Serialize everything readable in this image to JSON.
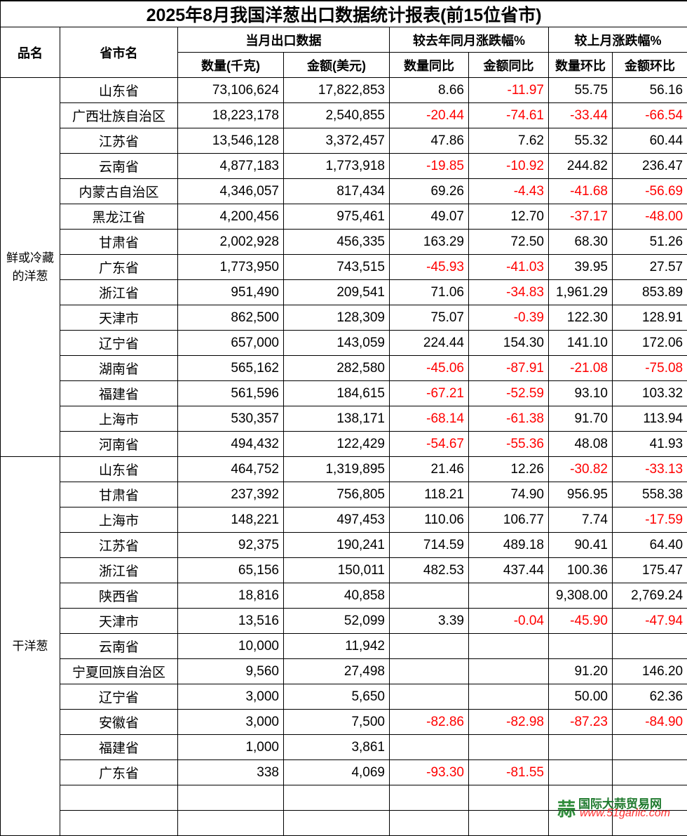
{
  "title": "2025年8月我国洋葱出口数据统计报表(前15位省市)",
  "headers": {
    "product": "品名",
    "province": "省市名",
    "group_current": "当月出口数据",
    "group_yoy": "较去年同月涨跌幅%",
    "group_mom": "较上月涨跌幅%",
    "quantity": "数量(千克)",
    "amount": "金额(美元)",
    "qty_yoy": "数量同比",
    "amt_yoy": "金额同比",
    "qty_mom": "数量环比",
    "amt_mom": "金额环比"
  },
  "colors": {
    "negative": "#ff0000",
    "logo_green": "#1f7a2e",
    "logo_red": "#ff3030"
  },
  "groups": [
    {
      "name": "鲜或冷藏的洋葱",
      "rows": [
        [
          "山东省",
          "73,106,624",
          "17,822,853",
          "8.66",
          "-11.97",
          "55.75",
          "56.16"
        ],
        [
          "广西壮族自治区",
          "18,223,178",
          "2,540,855",
          "-20.44",
          "-74.61",
          "-33.44",
          "-66.54"
        ],
        [
          "江苏省",
          "13,546,128",
          "3,372,457",
          "47.86",
          "7.62",
          "55.32",
          "60.44"
        ],
        [
          "云南省",
          "4,877,183",
          "1,773,918",
          "-19.85",
          "-10.92",
          "244.82",
          "236.47"
        ],
        [
          "内蒙古自治区",
          "4,346,057",
          "817,434",
          "69.26",
          "-4.43",
          "-41.68",
          "-56.69"
        ],
        [
          "黑龙江省",
          "4,200,456",
          "975,461",
          "49.07",
          "12.70",
          "-37.17",
          "-48.00"
        ],
        [
          "甘肃省",
          "2,002,928",
          "456,335",
          "163.29",
          "72.50",
          "68.30",
          "51.26"
        ],
        [
          "广东省",
          "1,773,950",
          "743,515",
          "-45.93",
          "-41.03",
          "39.95",
          "27.57"
        ],
        [
          "浙江省",
          "951,490",
          "209,541",
          "71.06",
          "-34.83",
          "1,961.29",
          "853.89"
        ],
        [
          "天津市",
          "862,500",
          "128,309",
          "75.07",
          "-0.39",
          "122.30",
          "128.91"
        ],
        [
          "辽宁省",
          "657,000",
          "143,059",
          "224.44",
          "154.30",
          "141.10",
          "172.06"
        ],
        [
          "湖南省",
          "565,162",
          "282,580",
          "-45.06",
          "-87.91",
          "-21.08",
          "-75.08"
        ],
        [
          "福建省",
          "561,596",
          "184,615",
          "-67.21",
          "-52.59",
          "93.10",
          "103.32"
        ],
        [
          "上海市",
          "530,357",
          "138,171",
          "-68.14",
          "-61.38",
          "91.70",
          "113.94"
        ],
        [
          "河南省",
          "494,432",
          "122,429",
          "-54.67",
          "-55.36",
          "48.08",
          "41.93"
        ]
      ]
    },
    {
      "name": "干洋葱",
      "rows": [
        [
          "山东省",
          "464,752",
          "1,319,895",
          "21.46",
          "12.26",
          "-30.82",
          "-33.13"
        ],
        [
          "甘肃省",
          "237,392",
          "756,805",
          "118.21",
          "74.90",
          "956.95",
          "558.38"
        ],
        [
          "上海市",
          "148,221",
          "497,453",
          "110.06",
          "106.77",
          "7.74",
          "-17.59"
        ],
        [
          "江苏省",
          "92,375",
          "190,241",
          "714.59",
          "489.18",
          "90.41",
          "64.40"
        ],
        [
          "浙江省",
          "65,156",
          "150,011",
          "482.53",
          "437.44",
          "100.36",
          "175.47"
        ],
        [
          "陕西省",
          "18,816",
          "40,858",
          "",
          "",
          "9,308.00",
          "2,769.24"
        ],
        [
          "天津市",
          "13,516",
          "52,099",
          "3.39",
          "-0.04",
          "-45.90",
          "-47.94"
        ],
        [
          "云南省",
          "10,000",
          "11,942",
          "",
          "",
          "",
          ""
        ],
        [
          "宁夏回族自治区",
          "9,560",
          "27,498",
          "",
          "",
          "91.20",
          "146.20"
        ],
        [
          "辽宁省",
          "3,000",
          "5,650",
          "",
          "",
          "50.00",
          "62.36"
        ],
        [
          "安徽省",
          "3,000",
          "7,500",
          "-82.86",
          "-82.98",
          "-87.23",
          "-84.90"
        ],
        [
          "福建省",
          "1,000",
          "3,861",
          "",
          "",
          "",
          ""
        ],
        [
          "广东省",
          "338",
          "4,069",
          "-93.30",
          "-81.55",
          "",
          ""
        ],
        [
          "",
          "",
          "",
          "",
          "",
          "",
          ""
        ],
        [
          "",
          "",
          "",
          "",
          "",
          "",
          ""
        ]
      ]
    }
  ],
  "logo": {
    "name": "国际大蒜贸易网",
    "url": "www.51garlic.com",
    "icon": "garlic-logo-icon"
  }
}
